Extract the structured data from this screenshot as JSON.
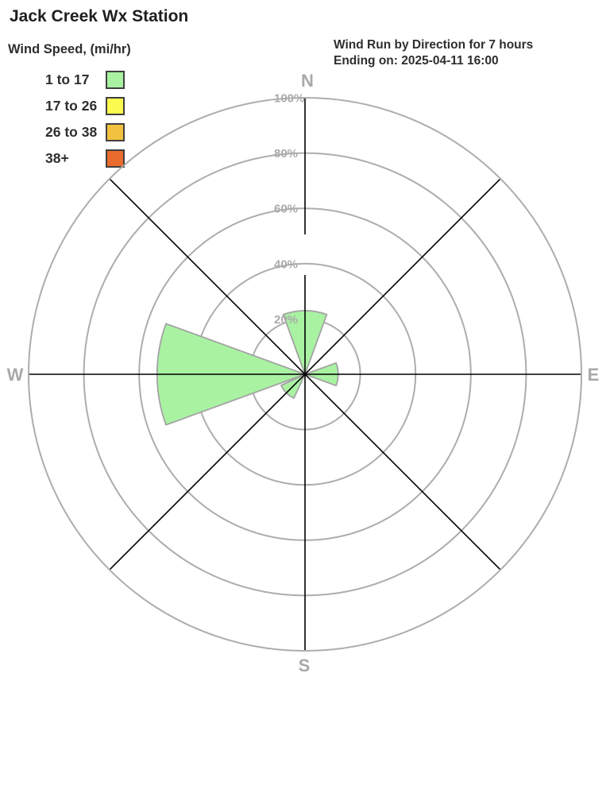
{
  "page": {
    "title": "Jack Creek Wx Station"
  },
  "legend": {
    "title": "Wind Speed, (mi/hr)",
    "items": [
      {
        "label": "1 to 17",
        "color": "#a9f2a2"
      },
      {
        "label": "17 to 26",
        "color": "#fbfb4f"
      },
      {
        "label": "26 to 38",
        "color": "#f1c23f"
      },
      {
        "label": "38+",
        "color": "#e96b2d"
      }
    ]
  },
  "header": {
    "line1": "Wind Run by Direction for 7 hours",
    "line2": "Ending on: 2025-04-11 16:00"
  },
  "chart_data": {
    "type": "wind_rose",
    "title": "Wind Run by Direction for 7 hours",
    "subtitle": "Ending on: 2025-04-11 16:00",
    "value_unit": "percent of wind run",
    "radial_axis": {
      "tick_values": [
        20,
        40,
        60,
        80,
        100
      ],
      "tick_labels": [
        "20%",
        "40%",
        "60%",
        "80%",
        "100%"
      ],
      "max": 100,
      "grid": "circles"
    },
    "cardinal_labels": {
      "n": "N",
      "e": "E",
      "s": "S",
      "w": "W"
    },
    "directions": [
      "N",
      "NE",
      "E",
      "SE",
      "S",
      "SW",
      "W",
      "NW"
    ],
    "sector_width_deg": 40,
    "series": [
      {
        "name": "1 to 17",
        "color": "#a9f2a2",
        "values_pct": [
          23,
          0,
          12,
          0,
          0,
          9.5,
          53.5,
          0
        ]
      },
      {
        "name": "17 to 26",
        "color": "#fbfb4f",
        "values_pct": [
          0,
          0,
          0,
          0,
          0,
          0,
          0,
          0
        ]
      },
      {
        "name": "26 to 38",
        "color": "#f1c23f",
        "values_pct": [
          0,
          0,
          0,
          0,
          0,
          0,
          0,
          0
        ]
      },
      {
        "name": "38+",
        "color": "#e96b2d",
        "values_pct": [
          0,
          0,
          0,
          0,
          0,
          0,
          0,
          0
        ]
      }
    ],
    "style_colors": {
      "ring": "#adadad",
      "axis_line": "#000000",
      "tick_text": "#ababab",
      "cardinal_text": "#a9a9a9",
      "wedge_stroke": "#a3a3a3"
    }
  }
}
